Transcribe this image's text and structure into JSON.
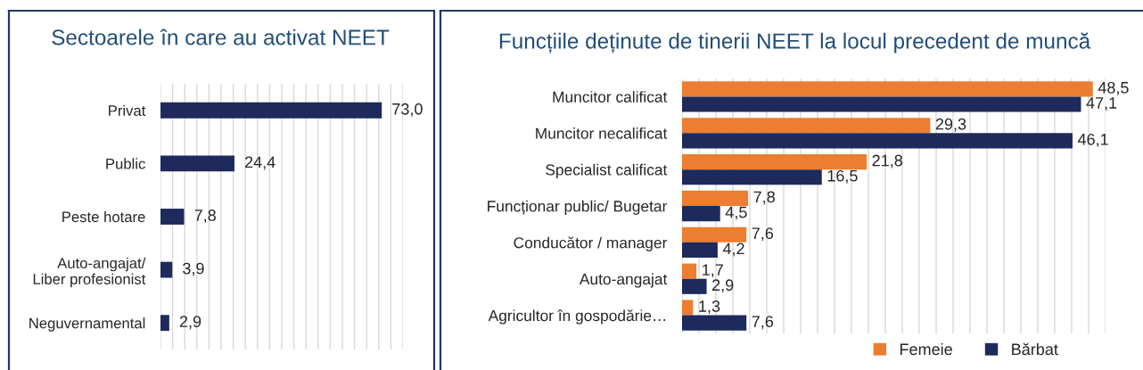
{
  "chart_data": [
    {
      "type": "bar",
      "orientation": "horizontal",
      "title": "Sectoarele în care au activat NEET",
      "categories": [
        "Privat",
        "Public",
        "Peste hotare",
        "Auto-angajat/\nLiber profesionist",
        "Neguvernamental"
      ],
      "values": [
        73.0,
        24.4,
        7.8,
        3.9,
        2.9
      ],
      "color": "#1f2a5c",
      "value_labels": [
        "73,0",
        "24,4",
        "7,8",
        "3,9",
        "2,9"
      ],
      "xlim": [
        0,
        80
      ],
      "xticks": [
        {
          "value": 0,
          "label": null
        },
        {
          "value": 4,
          "label": null
        },
        {
          "value": 8,
          "label": null
        },
        {
          "value": 12,
          "label": null
        },
        {
          "value": 16,
          "label": null
        },
        {
          "value": 20,
          "label": null
        },
        {
          "value": 24,
          "label": null
        },
        {
          "value": 28,
          "label": null
        },
        {
          "value": 32,
          "label": null
        },
        {
          "value": 36,
          "label": null
        },
        {
          "value": 40,
          "label": null
        },
        {
          "value": 44,
          "label": null
        },
        {
          "value": 48,
          "label": null
        },
        {
          "value": 52,
          "label": null
        },
        {
          "value": 56,
          "label": null
        },
        {
          "value": 60,
          "label": null
        },
        {
          "value": 64,
          "label": null
        },
        {
          "value": 68,
          "label": null
        },
        {
          "value": 72,
          "label": null
        },
        {
          "value": 76,
          "label": null
        },
        {
          "value": 80,
          "label": null
        }
      ],
      "grid": "x",
      "tick_labels": "y"
    },
    {
      "type": "bar",
      "orientation": "horizontal",
      "title": "Funcțiile deținute de tinerii NEET la locul precedent de muncă",
      "categories": [
        "Muncitor calificat",
        "Muncitor necalificat",
        "Specialist calificat",
        "Funcționar public/ Bugetar",
        "Conducător / manager",
        "Auto-angajat",
        "Agricultor în gospodărie…"
      ],
      "series": [
        {
          "name": "Femeie",
          "color": "#ed7d31",
          "values": [
            48.5,
            29.3,
            21.8,
            7.8,
            7.6,
            1.7,
            1.3
          ],
          "value_labels": [
            "48,5",
            "29,3",
            "21,8",
            "7,8",
            "7,6",
            "1,7",
            "1,3"
          ]
        },
        {
          "name": "Bărbat",
          "color": "#1f2a5c",
          "values": [
            47.1,
            46.1,
            16.5,
            4.5,
            4.2,
            2.9,
            7.6
          ],
          "value_labels": [
            "47,1",
            "46,1",
            "16,5",
            "4,5",
            "4,2",
            "2,9",
            "7,6"
          ]
        }
      ],
      "xlim": [
        0,
        50
      ],
      "xticks": [
        {
          "value": 0,
          "label": null
        },
        {
          "value": 2,
          "label": null
        },
        {
          "value": 4,
          "label": null
        },
        {
          "value": 6,
          "label": null
        },
        {
          "value": 8,
          "label": null
        },
        {
          "value": 10,
          "label": null
        },
        {
          "value": 12,
          "label": null
        },
        {
          "value": 14,
          "label": null
        },
        {
          "value": 16,
          "label": null
        },
        {
          "value": 18,
          "label": null
        },
        {
          "value": 20,
          "label": null
        },
        {
          "value": 22,
          "label": null
        },
        {
          "value": 24,
          "label": null
        },
        {
          "value": 26,
          "label": null
        },
        {
          "value": 28,
          "label": null
        },
        {
          "value": 30,
          "label": null
        },
        {
          "value": 32,
          "label": null
        },
        {
          "value": 34,
          "label": null
        },
        {
          "value": 36,
          "label": null
        },
        {
          "value": 38,
          "label": null
        },
        {
          "value": 40,
          "label": null
        },
        {
          "value": 42,
          "label": null
        },
        {
          "value": 44,
          "label": null
        },
        {
          "value": 46,
          "label": null
        },
        {
          "value": 48,
          "label": null
        },
        {
          "value": 50,
          "label": null
        }
      ],
      "grid": "x",
      "tick_labels": "y",
      "legend": "bottom"
    }
  ]
}
